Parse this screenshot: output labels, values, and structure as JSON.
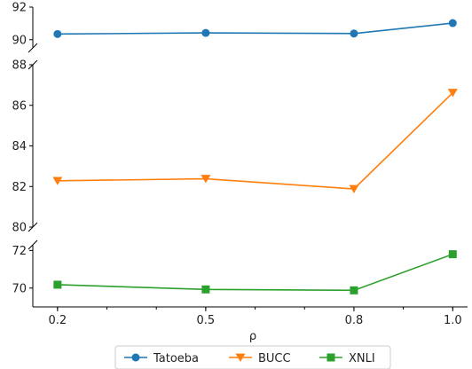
{
  "chart_data": {
    "type": "line",
    "x": [
      0.2,
      0.5,
      0.8,
      1.0
    ],
    "x_tick_labels": [
      "0.2",
      "0.5",
      "0.8",
      "1.0"
    ],
    "xlabel": "ρ",
    "xlim": [
      0.15,
      1.03
    ],
    "broken_y_axis": true,
    "panels": [
      {
        "series": "Tatoeba",
        "ylim": [
          89.5,
          92
        ],
        "yticks": [
          90,
          92
        ]
      },
      {
        "series": "BUCC",
        "ylim": [
          80,
          88
        ],
        "yticks": [
          80,
          82,
          84,
          86,
          88
        ]
      },
      {
        "series": "XNLI",
        "ylim": [
          69,
          72.3
        ],
        "yticks": [
          70,
          72
        ]
      }
    ],
    "series": [
      {
        "name": "Tatoeba",
        "marker": "circle",
        "color": "#1f77b4",
        "values": [
          90.35,
          90.42,
          90.38,
          91.02
        ]
      },
      {
        "name": "BUCC",
        "marker": "triangle-down",
        "color": "#ff7f0e",
        "values": [
          82.28,
          82.38,
          81.88,
          86.62
        ]
      },
      {
        "name": "XNLI",
        "marker": "square",
        "color": "#2ca02c",
        "values": [
          70.18,
          69.93,
          69.88,
          71.8
        ]
      }
    ],
    "legend": {
      "placement": "bottom-center"
    },
    "grid": false
  }
}
